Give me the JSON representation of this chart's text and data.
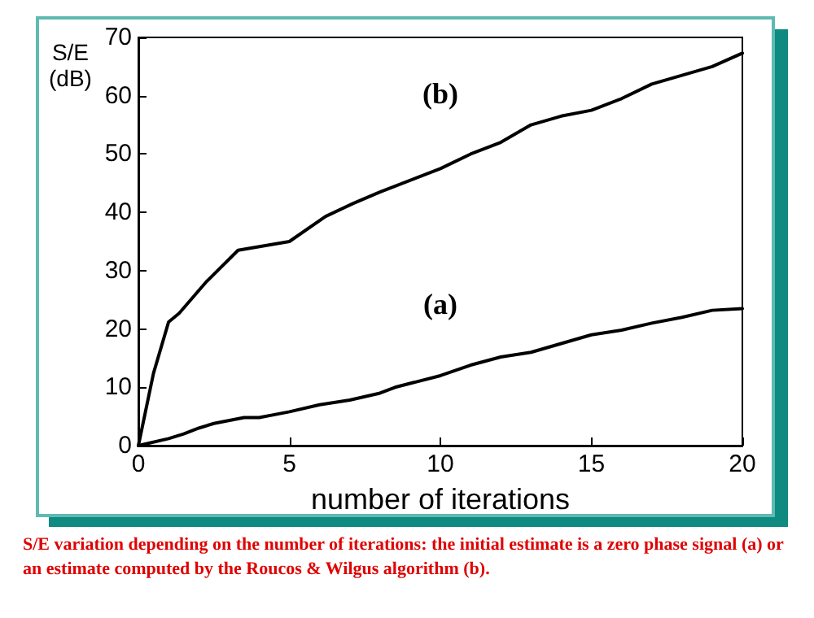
{
  "chart_data": {
    "type": "line",
    "xlabel": "number of iterations",
    "ylabel": "S/E\n(dB)",
    "xlim": [
      0,
      20
    ],
    "ylim": [
      0,
      70
    ],
    "xticks": [
      0,
      5,
      10,
      15,
      20
    ],
    "yticks": [
      0,
      10,
      20,
      30,
      40,
      50,
      60,
      70
    ],
    "grid": false,
    "legend": false,
    "marker": "none",
    "line_style": "solid",
    "series": [
      {
        "name": "(b)",
        "color": "#000000",
        "x": [
          0,
          0.5,
          1,
          1.35,
          2.25,
          3.3,
          5,
          6.2,
          7.1,
          8,
          10,
          11,
          12,
          13,
          14,
          15,
          16,
          17,
          18,
          19,
          20
        ],
        "values": [
          0,
          12.4,
          21.2,
          22.7,
          28.1,
          33.5,
          35,
          39.3,
          41.5,
          43.5,
          47.5,
          50,
          52,
          55,
          56.5,
          57.5,
          59.5,
          62,
          63.5,
          65,
          67.3
        ]
      },
      {
        "name": "(a)",
        "color": "#000000",
        "x": [
          0,
          1,
          1.5,
          2,
          2.5,
          3.5,
          4,
          5,
          6,
          7,
          8,
          8.5,
          10,
          11,
          12,
          13,
          14,
          15,
          16,
          17,
          18,
          19,
          20
        ],
        "values": [
          0,
          1.2,
          2,
          3,
          3.8,
          4.8,
          4.8,
          5.8,
          7,
          7.8,
          9,
          10,
          12,
          13.8,
          15.2,
          16,
          17.5,
          19,
          19.8,
          21,
          22,
          23.2,
          23.5
        ]
      }
    ],
    "annotations": [
      "S/E variation depending on the number of iterations: the initial estimate is a zero phase signal (a) or an estimate computed by the Roucos & Wilgus algorithm (b)."
    ]
  }
}
